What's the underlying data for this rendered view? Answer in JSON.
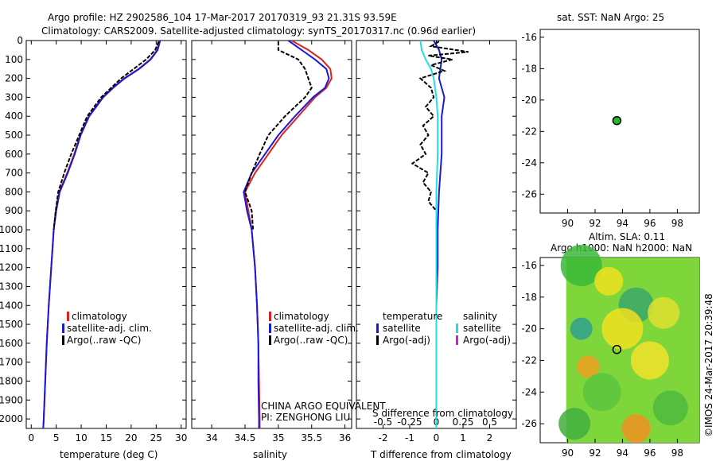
{
  "header": {
    "line1": "Argo profile: HZ 2902586_104 17-Mar-2017 20170319_93 21.31S 93.59E",
    "line2": "Climatology: CARS2009. Satellite-adjusted climatology: synTS_20170317.nc (0.96d earlier)"
  },
  "colors": {
    "climatology": "#dd2222",
    "satellite": "#1a1ad6",
    "argo": "#000000",
    "satellite_s": "#22e0e0",
    "argo_adj_s": "#cc22cc",
    "dot": "#22bb22"
  },
  "credit": "©IMOS 24-Mar-2017 20:39:48",
  "chart_data": [
    {
      "id": "temperature",
      "type": "line",
      "xlabel": "temperature (deg C)",
      "ylabel": "",
      "xlim": [
        -1,
        31
      ],
      "ylim": [
        2050,
        0
      ],
      "xticks": [
        0,
        5,
        10,
        15,
        20,
        25,
        30
      ],
      "yticks": [
        0,
        100,
        200,
        300,
        400,
        500,
        600,
        700,
        800,
        900,
        1000,
        1100,
        1200,
        1300,
        1400,
        1500,
        1600,
        1700,
        1800,
        1900,
        2000
      ],
      "legend": [
        "climatology",
        "satellite-adj. clim.",
        "Argo(..raw -QC)"
      ],
      "series": [
        {
          "name": "climatology",
          "color": "#dd2222",
          "depth": [
            0,
            50,
            100,
            150,
            200,
            250,
            300,
            400,
            500,
            600,
            700,
            800,
            900,
            1000,
            1200,
            1400,
            1600,
            1800,
            2000,
            2050
          ],
          "values": [
            25.6,
            25.2,
            23.8,
            21.5,
            18.6,
            16.3,
            14.3,
            11.5,
            9.8,
            8.6,
            7.2,
            5.6,
            4.9,
            4.5,
            4.0,
            3.5,
            3.1,
            2.8,
            2.5,
            2.4
          ]
        },
        {
          "name": "satellite-adj. clim.",
          "color": "#1a1ad6",
          "depth": [
            0,
            50,
            100,
            150,
            200,
            250,
            300,
            400,
            500,
            600,
            700,
            800,
            900,
            1000,
            1200,
            1400,
            1600,
            1800,
            2000,
            2050
          ],
          "values": [
            25.8,
            25.3,
            23.9,
            21.6,
            18.7,
            16.4,
            14.4,
            11.6,
            9.9,
            8.7,
            7.3,
            5.7,
            5.0,
            4.5,
            4.0,
            3.5,
            3.1,
            2.8,
            2.5,
            2.4
          ]
        },
        {
          "name": "Argo(..raw -QC)",
          "color": "#000000",
          "depth": [
            5,
            50,
            100,
            150,
            200,
            250,
            300,
            400,
            500,
            600,
            700,
            800,
            900,
            1000
          ],
          "values": [
            25.5,
            24.8,
            23.0,
            20.5,
            18.0,
            16.0,
            14.0,
            11.2,
            9.6,
            8.0,
            6.6,
            5.4,
            4.9,
            4.5
          ]
        }
      ]
    },
    {
      "id": "salinity",
      "type": "line",
      "xlabel": "salinity",
      "ylabel": "",
      "xlim": [
        33.7,
        36.1
      ],
      "ylim": [
        2050,
        0
      ],
      "xticks": [
        34,
        34.5,
        35,
        35.5,
        36
      ],
      "legend": [
        "climatology",
        "satellite-adj. clim.",
        "Argo(..raw -QC)"
      ],
      "annotation": [
        "CHINA ARGO EQUIVALENT",
        "PI: ZENGHONG LIU"
      ],
      "series": [
        {
          "name": "climatology",
          "color": "#dd2222",
          "depth": [
            0,
            50,
            100,
            150,
            200,
            250,
            300,
            400,
            500,
            600,
            700,
            800,
            900,
            1000,
            1200,
            1400,
            1600,
            1800,
            2000,
            2050
          ],
          "values": [
            35.2,
            35.45,
            35.65,
            35.78,
            35.8,
            35.72,
            35.55,
            35.3,
            35.05,
            34.85,
            34.65,
            34.5,
            34.55,
            34.6,
            34.65,
            34.68,
            34.7,
            34.71,
            34.72,
            34.72
          ]
        },
        {
          "name": "satellite-adj. clim.",
          "color": "#1a1ad6",
          "depth": [
            0,
            50,
            100,
            150,
            200,
            250,
            300,
            400,
            500,
            600,
            700,
            800,
            900,
            1000,
            1200,
            1400,
            1600,
            1800,
            2000,
            2050
          ],
          "values": [
            35.15,
            35.35,
            35.55,
            35.72,
            35.76,
            35.7,
            35.52,
            35.25,
            35.0,
            34.8,
            34.6,
            34.48,
            34.53,
            34.6,
            34.65,
            34.68,
            34.7,
            34.7,
            34.71,
            34.71
          ]
        },
        {
          "name": "Argo(..raw -QC)",
          "color": "#000000",
          "depth": [
            5,
            50,
            100,
            150,
            200,
            250,
            300,
            400,
            500,
            600,
            700,
            800,
            900,
            1000
          ],
          "values": [
            35.0,
            35.0,
            35.3,
            35.4,
            35.45,
            35.5,
            35.4,
            35.1,
            34.85,
            34.72,
            34.6,
            34.5,
            34.6,
            34.62
          ]
        }
      ]
    },
    {
      "id": "difference",
      "type": "line",
      "xlabel": "T difference from climatology",
      "xlabel_top": "S difference from climatology",
      "xlim": [
        -3,
        3
      ],
      "ylim": [
        2050,
        0
      ],
      "xticks": [
        -2,
        -1,
        0,
        1,
        2
      ],
      "xticks_top": [
        "-0.5",
        "-0.25",
        "0",
        "0.25",
        "0.5"
      ],
      "legend_left": [
        "temperature",
        "satellite",
        "Argo(-adj)"
      ],
      "legend_right": [
        "salinity",
        "satellite",
        "Argo(-adj)"
      ],
      "series": [
        {
          "name": "satellite",
          "color": "#1a1ad6",
          "depth": [
            0,
            50,
            100,
            150,
            200,
            300,
            400,
            600,
            800,
            1000,
            1200,
            1400,
            1600,
            1800,
            2000,
            2050
          ],
          "values": [
            -0.1,
            0.1,
            0.2,
            0.15,
            0.1,
            0.3,
            0.2,
            0.2,
            0.1,
            0.05,
            0.05,
            0.0,
            0.0,
            0.0,
            0.0,
            0.0
          ]
        },
        {
          "name": "satellite",
          "color": "#22e0e0",
          "depth": [
            0,
            50,
            100,
            150,
            200,
            300,
            400,
            600,
            800,
            1000,
            1200,
            1400,
            1600,
            1800,
            2000,
            2050
          ],
          "values": [
            -0.6,
            -0.55,
            -0.4,
            -0.2,
            -0.1,
            0.0,
            0.05,
            0.05,
            0.0,
            0.0,
            0.0,
            0.0,
            0.0,
            0.0,
            0.0,
            0.0
          ]
        },
        {
          "name": "Argo(-adj)",
          "color": "#000000",
          "depth": [
            5,
            30,
            60,
            80,
            100,
            130,
            160,
            200,
            250,
            300,
            350,
            400,
            450,
            500,
            550,
            600,
            650,
            700,
            750,
            800,
            850,
            900
          ],
          "values": [
            0.1,
            -0.2,
            1.2,
            -0.3,
            0.6,
            -0.2,
            0.3,
            -0.6,
            -0.2,
            -0.1,
            -0.4,
            -0.1,
            -0.5,
            -0.3,
            -0.6,
            -0.4,
            -0.9,
            -0.3,
            -0.5,
            -0.2,
            -0.3,
            0.0
          ]
        }
      ]
    },
    {
      "id": "sst_map",
      "type": "scatter",
      "title": "sat. SST: NaN  Argo: 25",
      "xlim": [
        88,
        99.6
      ],
      "ylim": [
        -27.2,
        -15.5
      ],
      "xticks": [
        90,
        92,
        94,
        96,
        98
      ],
      "yticks": [
        -16,
        -18,
        -20,
        -22,
        -24,
        -26
      ],
      "points": [
        {
          "x": 93.59,
          "y": -21.31
        }
      ]
    },
    {
      "id": "sla_map",
      "type": "heatmap",
      "title_line1": "Altim. SLA: 0.11",
      "title_line2": "Argo h1000: NaN  h2000: NaN",
      "xlim": [
        88,
        99.6
      ],
      "ylim": [
        -27.2,
        -15.5
      ],
      "xticks": [
        90,
        92,
        94,
        96,
        98
      ],
      "yticks": [
        -16,
        -18,
        -20,
        -22,
        -24,
        -26
      ],
      "points": [
        {
          "x": 93.59,
          "y": -21.31
        }
      ]
    }
  ]
}
